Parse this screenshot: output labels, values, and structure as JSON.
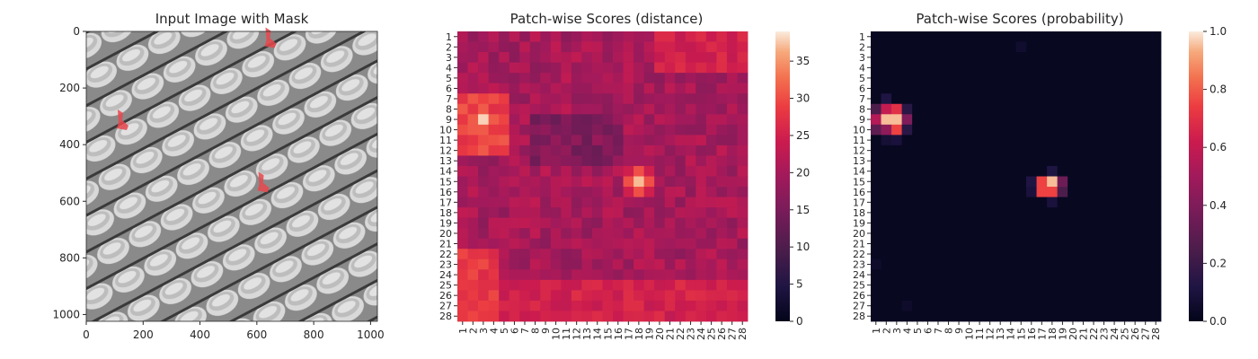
{
  "chart_data": [
    {
      "type": "image",
      "title": "Input Image with Mask",
      "xlim": [
        0,
        1024
      ],
      "ylim": [
        1024,
        0
      ],
      "xticks": [
        0,
        200,
        400,
        600,
        800,
        1000
      ],
      "yticks": [
        0,
        200,
        400,
        600,
        800,
        1000
      ],
      "image_description_hint": "grey woven mesh texture",
      "mask_regions": [
        {
          "x": 640,
          "y": 30
        },
        {
          "x": 120,
          "y": 320
        },
        {
          "x": 615,
          "y": 540
        }
      ],
      "mask_color": "#e8474c"
    },
    {
      "type": "heatmap",
      "title": "Patch-wise Scores (distance)",
      "rows": 28,
      "cols": 28,
      "row_labels": [
        "1",
        "2",
        "3",
        "4",
        "5",
        "6",
        "7",
        "8",
        "9",
        "10",
        "11",
        "12",
        "13",
        "14",
        "15",
        "16",
        "17",
        "18",
        "19",
        "20",
        "21",
        "22",
        "23",
        "24",
        "25",
        "26",
        "27",
        "28"
      ],
      "col_labels": [
        "1",
        "2",
        "3",
        "4",
        "5",
        "6",
        "7",
        "8",
        "9",
        "10",
        "11",
        "12",
        "13",
        "14",
        "15",
        "16",
        "17",
        "18",
        "19",
        "20",
        "21",
        "22",
        "23",
        "24",
        "25",
        "26",
        "27",
        "28"
      ],
      "vmin": 0,
      "vmax": 39,
      "colorbar_ticks": [
        0,
        5,
        10,
        15,
        20,
        25,
        30,
        35
      ],
      "background_value": 20,
      "hotspots": [
        {
          "row": 9,
          "col": 3,
          "peak": 38
        },
        {
          "row": 15,
          "col": 18,
          "peak": 37
        }
      ],
      "warm_bands": [
        {
          "rows": [
            7,
            12
          ],
          "cols": [
            1,
            5
          ],
          "value": 29
        },
        {
          "rows": [
            22,
            28
          ],
          "cols": [
            1,
            4
          ],
          "value": 28
        },
        {
          "rows": [
            25,
            28
          ],
          "cols": [
            5,
            28
          ],
          "value": 25
        },
        {
          "rows": [
            1,
            4
          ],
          "cols": [
            20,
            28
          ],
          "value": 25
        }
      ]
    },
    {
      "type": "heatmap",
      "title": "Patch-wise Scores (probability)",
      "rows": 28,
      "cols": 28,
      "row_labels": [
        "1",
        "2",
        "3",
        "4",
        "5",
        "6",
        "7",
        "8",
        "9",
        "10",
        "11",
        "12",
        "13",
        "14",
        "15",
        "16",
        "17",
        "18",
        "19",
        "20",
        "21",
        "22",
        "23",
        "24",
        "25",
        "26",
        "27",
        "28"
      ],
      "col_labels": [
        "1",
        "2",
        "3",
        "4",
        "5",
        "6",
        "7",
        "8",
        "9",
        "10",
        "11",
        "12",
        "13",
        "14",
        "15",
        "16",
        "17",
        "18",
        "19",
        "20",
        "21",
        "22",
        "23",
        "24",
        "25",
        "26",
        "27",
        "28"
      ],
      "vmin": 0,
      "vmax": 1,
      "colorbar_ticks": [
        "0.0",
        "0.2",
        "0.4",
        "0.6",
        "0.8",
        "1.0"
      ],
      "cells": [
        {
          "row": 7,
          "col": 2,
          "value": 0.12
        },
        {
          "row": 8,
          "col": 1,
          "value": 0.25
        },
        {
          "row": 8,
          "col": 2,
          "value": 0.6
        },
        {
          "row": 8,
          "col": 3,
          "value": 0.7
        },
        {
          "row": 8,
          "col": 4,
          "value": 0.15
        },
        {
          "row": 9,
          "col": 1,
          "value": 0.55
        },
        {
          "row": 9,
          "col": 2,
          "value": 0.95
        },
        {
          "row": 9,
          "col": 3,
          "value": 0.95
        },
        {
          "row": 9,
          "col": 4,
          "value": 0.4
        },
        {
          "row": 10,
          "col": 1,
          "value": 0.3
        },
        {
          "row": 10,
          "col": 2,
          "value": 0.45
        },
        {
          "row": 10,
          "col": 3,
          "value": 0.75
        },
        {
          "row": 10,
          "col": 4,
          "value": 0.15
        },
        {
          "row": 11,
          "col": 2,
          "value": 0.08
        },
        {
          "row": 11,
          "col": 3,
          "value": 0.1
        },
        {
          "row": 14,
          "col": 18,
          "value": 0.12
        },
        {
          "row": 15,
          "col": 16,
          "value": 0.12
        },
        {
          "row": 15,
          "col": 17,
          "value": 0.75
        },
        {
          "row": 15,
          "col": 18,
          "value": 0.95
        },
        {
          "row": 15,
          "col": 19,
          "value": 0.35
        },
        {
          "row": 16,
          "col": 16,
          "value": 0.1
        },
        {
          "row": 16,
          "col": 17,
          "value": 0.75
        },
        {
          "row": 16,
          "col": 18,
          "value": 0.75
        },
        {
          "row": 16,
          "col": 19,
          "value": 0.25
        },
        {
          "row": 17,
          "col": 18,
          "value": 0.1
        },
        {
          "row": 2,
          "col": 15,
          "value": 0.06
        },
        {
          "row": 23,
          "col": 1,
          "value": 0.05
        },
        {
          "row": 27,
          "col": 4,
          "value": 0.05
        }
      ],
      "background_value": 0.02
    }
  ]
}
